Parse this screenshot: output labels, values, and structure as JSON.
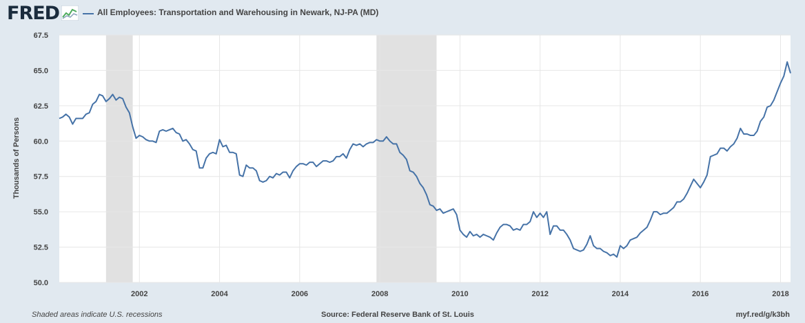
{
  "header": {
    "logo": "FRED",
    "logo_icon": "line-graph-icon",
    "series_title": "All Employees: Transportation and Warehousing in Newark, NJ-PA (MD)"
  },
  "footer": {
    "note": "Shaded areas indicate U.S. recessions",
    "source": "Source: Federal Reserve Bank of St. Louis",
    "link": "myf.red/g/k3bh"
  },
  "colors": {
    "background": "#e1e9f0",
    "plot_background": "#ffffff",
    "line": "#4572a7",
    "recession": "#e1e1e1",
    "grid": "#e6e6e6"
  },
  "chart_data": {
    "type": "line",
    "title": "All Employees: Transportation and Warehousing in Newark, NJ-PA (MD)",
    "ylabel": "Thousands of Persons",
    "xlabel": "",
    "ylim": [
      50.0,
      67.5
    ],
    "xlim": [
      "2000-01",
      "2018-04"
    ],
    "y_ticks": [
      "50.0",
      "52.5",
      "55.0",
      "57.5",
      "60.0",
      "62.5",
      "65.0",
      "67.5"
    ],
    "x_ticks": [
      "2002",
      "2004",
      "2006",
      "2008",
      "2010",
      "2012",
      "2014",
      "2016",
      "2018"
    ],
    "grid": true,
    "recessions": [
      {
        "start": "2001-03",
        "end": "2001-11"
      },
      {
        "start": "2007-12",
        "end": "2009-06"
      }
    ],
    "series": [
      {
        "name": "All Employees: Transportation and Warehousing in Newark, NJ-PA (MD)",
        "x": [
          "2000-01",
          "2000-02",
          "2000-03",
          "2000-04",
          "2000-05",
          "2000-06",
          "2000-07",
          "2000-08",
          "2000-09",
          "2000-10",
          "2000-11",
          "2000-12",
          "2001-01",
          "2001-02",
          "2001-03",
          "2001-04",
          "2001-05",
          "2001-06",
          "2001-07",
          "2001-08",
          "2001-09",
          "2001-10",
          "2001-11",
          "2001-12",
          "2002-01",
          "2002-02",
          "2002-03",
          "2002-04",
          "2002-05",
          "2002-06",
          "2002-07",
          "2002-08",
          "2002-09",
          "2002-10",
          "2002-11",
          "2002-12",
          "2003-01",
          "2003-02",
          "2003-03",
          "2003-04",
          "2003-05",
          "2003-06",
          "2003-07",
          "2003-08",
          "2003-09",
          "2003-10",
          "2003-11",
          "2003-12",
          "2004-01",
          "2004-02",
          "2004-03",
          "2004-04",
          "2004-05",
          "2004-06",
          "2004-07",
          "2004-08",
          "2004-09",
          "2004-10",
          "2004-11",
          "2004-12",
          "2005-01",
          "2005-02",
          "2005-03",
          "2005-04",
          "2005-05",
          "2005-06",
          "2005-07",
          "2005-08",
          "2005-09",
          "2005-10",
          "2005-11",
          "2005-12",
          "2006-01",
          "2006-02",
          "2006-03",
          "2006-04",
          "2006-05",
          "2006-06",
          "2006-07",
          "2006-08",
          "2006-09",
          "2006-10",
          "2006-11",
          "2006-12",
          "2007-01",
          "2007-02",
          "2007-03",
          "2007-04",
          "2007-05",
          "2007-06",
          "2007-07",
          "2007-08",
          "2007-09",
          "2007-10",
          "2007-11",
          "2007-12",
          "2008-01",
          "2008-02",
          "2008-03",
          "2008-04",
          "2008-05",
          "2008-06",
          "2008-07",
          "2008-08",
          "2008-09",
          "2008-10",
          "2008-11",
          "2008-12",
          "2009-01",
          "2009-02",
          "2009-03",
          "2009-04",
          "2009-05",
          "2009-06",
          "2009-07",
          "2009-08",
          "2009-09",
          "2009-10",
          "2009-11",
          "2009-12",
          "2010-01",
          "2010-02",
          "2010-03",
          "2010-04",
          "2010-05",
          "2010-06",
          "2010-07",
          "2010-08",
          "2010-09",
          "2010-10",
          "2010-11",
          "2010-12",
          "2011-01",
          "2011-02",
          "2011-03",
          "2011-04",
          "2011-05",
          "2011-06",
          "2011-07",
          "2011-08",
          "2011-09",
          "2011-10",
          "2011-11",
          "2011-12",
          "2012-01",
          "2012-02",
          "2012-03",
          "2012-04",
          "2012-05",
          "2012-06",
          "2012-07",
          "2012-08",
          "2012-09",
          "2012-10",
          "2012-11",
          "2012-12",
          "2013-01",
          "2013-02",
          "2013-03",
          "2013-04",
          "2013-05",
          "2013-06",
          "2013-07",
          "2013-08",
          "2013-09",
          "2013-10",
          "2013-11",
          "2013-12",
          "2014-01",
          "2014-02",
          "2014-03",
          "2014-04",
          "2014-05",
          "2014-06",
          "2014-07",
          "2014-08",
          "2014-09",
          "2014-10",
          "2014-11",
          "2014-12",
          "2015-01",
          "2015-02",
          "2015-03",
          "2015-04",
          "2015-05",
          "2015-06",
          "2015-07",
          "2015-08",
          "2015-09",
          "2015-10",
          "2015-11",
          "2015-12",
          "2016-01",
          "2016-02",
          "2016-03",
          "2016-04",
          "2016-05",
          "2016-06",
          "2016-07",
          "2016-08",
          "2016-09",
          "2016-10",
          "2016-11",
          "2016-12",
          "2017-01",
          "2017-02",
          "2017-03",
          "2017-04",
          "2017-05",
          "2017-06",
          "2017-07",
          "2017-08",
          "2017-09",
          "2017-10",
          "2017-11",
          "2017-12",
          "2018-01",
          "2018-02",
          "2018-03",
          "2018-04"
        ],
        "values": [
          61.6,
          61.7,
          61.9,
          61.7,
          61.2,
          61.6,
          61.6,
          61.6,
          61.9,
          62.0,
          62.6,
          62.8,
          63.3,
          63.2,
          62.8,
          63.0,
          63.3,
          62.9,
          63.1,
          63.0,
          62.4,
          62.0,
          61.0,
          60.2,
          60.4,
          60.3,
          60.1,
          60.0,
          60.0,
          59.9,
          60.7,
          60.8,
          60.7,
          60.8,
          60.9,
          60.6,
          60.5,
          60.0,
          60.1,
          59.8,
          59.4,
          59.3,
          58.1,
          58.1,
          58.8,
          59.1,
          59.2,
          59.1,
          60.1,
          59.6,
          59.7,
          59.2,
          59.2,
          59.1,
          57.6,
          57.5,
          58.3,
          58.1,
          58.1,
          57.9,
          57.2,
          57.1,
          57.2,
          57.5,
          57.4,
          57.7,
          57.6,
          57.8,
          57.8,
          57.4,
          57.9,
          58.2,
          58.4,
          58.4,
          58.3,
          58.5,
          58.5,
          58.2,
          58.4,
          58.6,
          58.6,
          58.5,
          58.6,
          58.9,
          58.9,
          59.1,
          58.8,
          59.4,
          59.8,
          59.7,
          59.8,
          59.6,
          59.8,
          59.9,
          59.9,
          60.1,
          60.0,
          60.0,
          60.3,
          60.0,
          59.8,
          59.8,
          59.2,
          59.0,
          58.7,
          57.9,
          57.8,
          57.5,
          57.0,
          56.7,
          56.2,
          55.5,
          55.4,
          55.1,
          55.2,
          54.9,
          55.0,
          55.1,
          55.2,
          54.8,
          53.7,
          53.4,
          53.2,
          53.6,
          53.3,
          53.4,
          53.2,
          53.4,
          53.3,
          53.2,
          53.0,
          53.5,
          53.9,
          54.1,
          54.1,
          54.0,
          53.7,
          53.8,
          53.7,
          54.1,
          54.1,
          54.3,
          55.0,
          54.6,
          54.9,
          54.6,
          55.0,
          53.4,
          54.0,
          54.0,
          53.7,
          53.7,
          53.4,
          53.0,
          52.4,
          52.3,
          52.2,
          52.3,
          52.7,
          53.3,
          52.6,
          52.4,
          52.4,
          52.2,
          52.1,
          51.9,
          52.0,
          51.8,
          52.6,
          52.4,
          52.6,
          53.0,
          53.1,
          53.2,
          53.5,
          53.7,
          53.9,
          54.4,
          55.0,
          55.0,
          54.8,
          54.9,
          54.9,
          55.1,
          55.3,
          55.7,
          55.7,
          55.9,
          56.3,
          56.8,
          57.3,
          57.0,
          56.7,
          57.1,
          57.6,
          58.9,
          59.0,
          59.1,
          59.5,
          59.5,
          59.3,
          59.6,
          59.8,
          60.2,
          60.9,
          60.5,
          60.5,
          60.4,
          60.4,
          60.7,
          61.4,
          61.7,
          62.4,
          62.5,
          62.9,
          63.5,
          64.1,
          64.6,
          65.6,
          64.8
        ]
      }
    ]
  }
}
